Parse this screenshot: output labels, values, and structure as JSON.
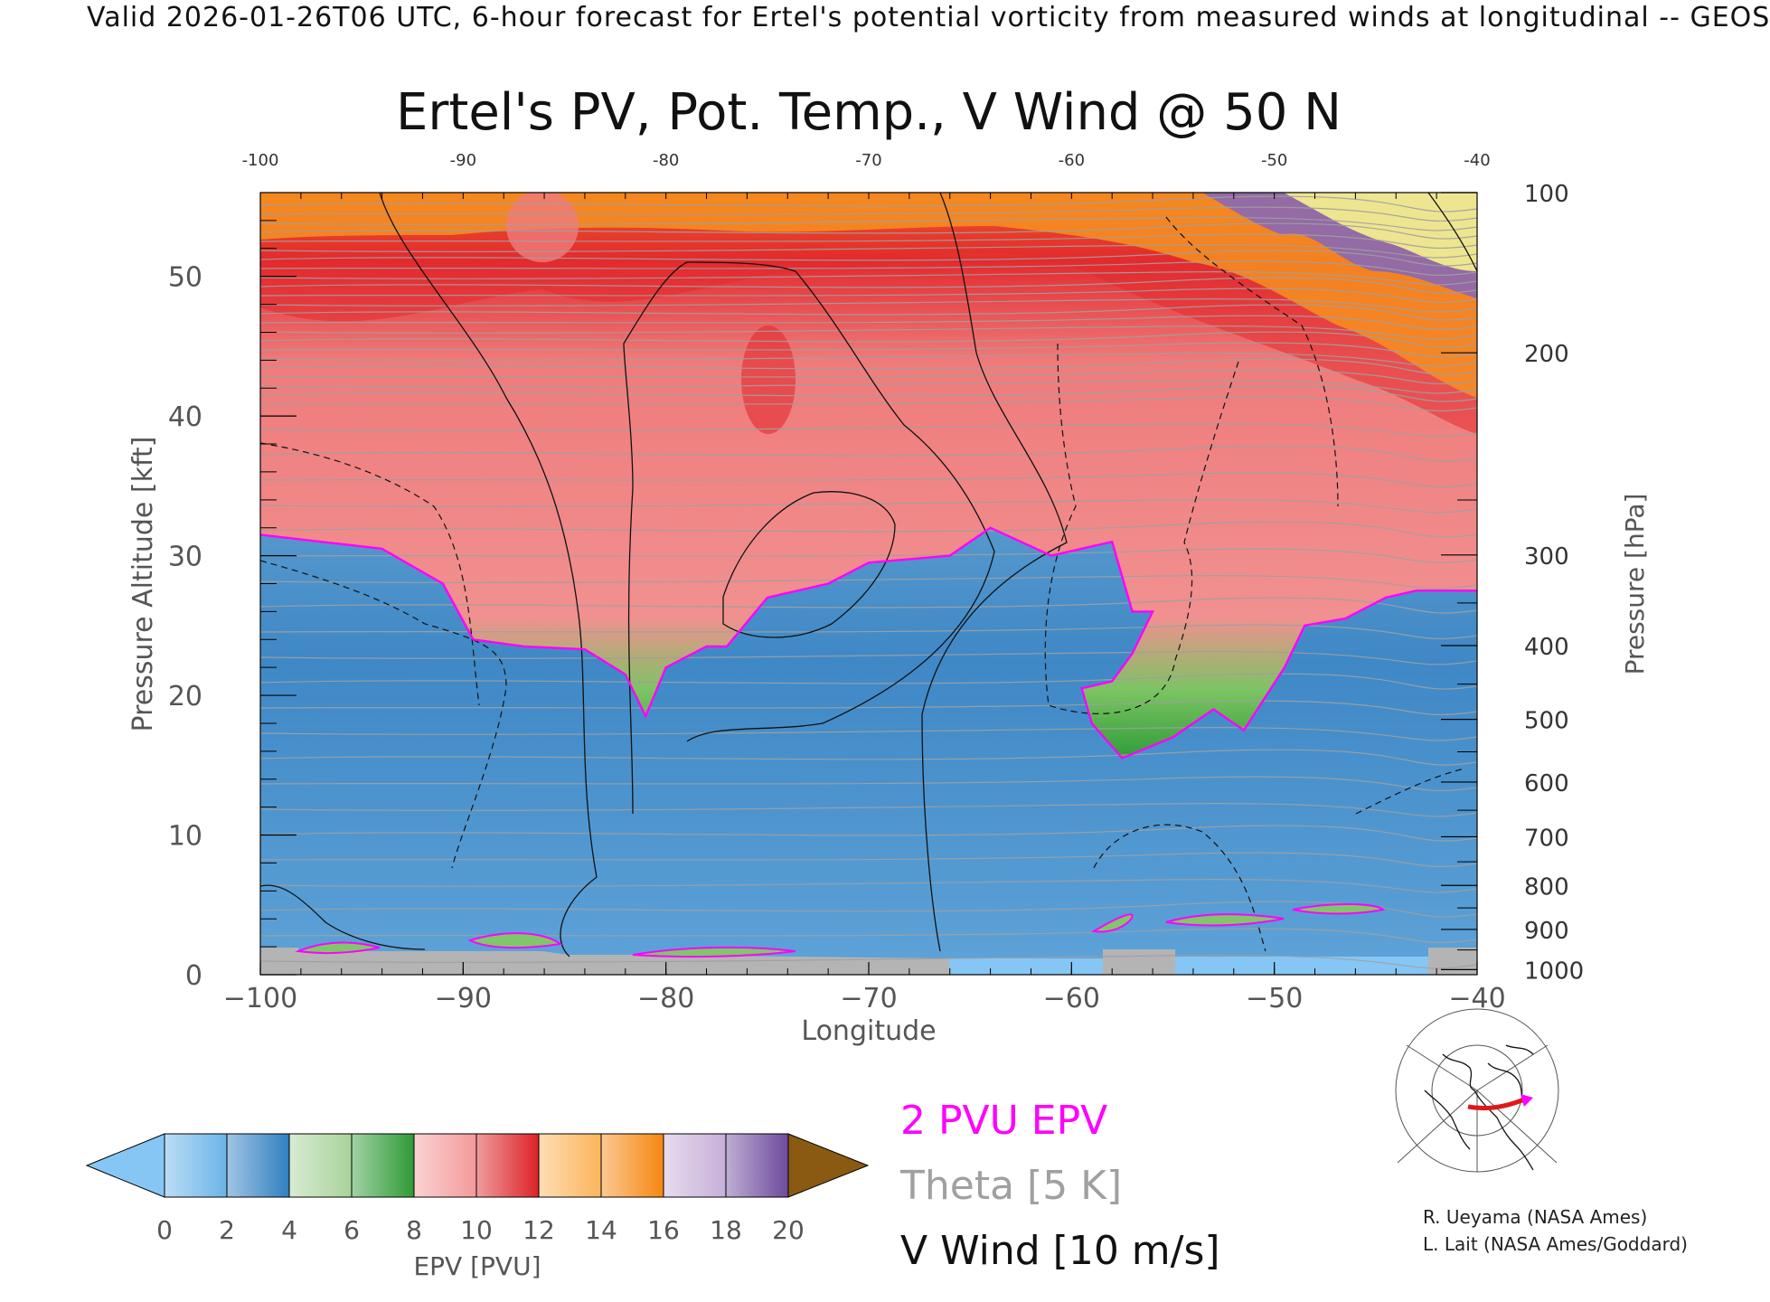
{
  "header": {
    "title": "Valid 2026-01-26T06 UTC, 6-hour forecast for Ertel's potential vorticity from measured winds at longitudinal -- GEOS"
  },
  "chart_data": {
    "type": "heatmap",
    "title": "Ertel's PV, Pot. Temp., V Wind @ 50 N",
    "xlabel": "Longitude",
    "ylabel": "Pressure Altitude [kft]",
    "y2label": "Pressure [hPa]",
    "xlim": [
      -100,
      -40
    ],
    "ylim": [
      0,
      56
    ],
    "x_ticks": [
      -100,
      -90,
      -80,
      -70,
      -60,
      -50,
      -40
    ],
    "x_tick_labels": [
      "−100",
      "−90",
      "−80",
      "−70",
      "−60",
      "−50",
      "−40"
    ],
    "x_top_tick_labels": [
      "-100",
      "-90",
      "-80",
      "-70",
      "-60",
      "-50",
      "-40"
    ],
    "y_ticks": [
      0,
      10,
      20,
      30,
      40,
      50
    ],
    "y_tick_labels": [
      "0",
      "10",
      "20",
      "30",
      "40",
      "50"
    ],
    "pressure_ticks": [
      {
        "hpa": 1000,
        "label": "1000"
      },
      {
        "hpa": 900,
        "label": "900"
      },
      {
        "hpa": 800,
        "label": "800"
      },
      {
        "hpa": 700,
        "label": "700"
      },
      {
        "hpa": 600,
        "label": "600"
      },
      {
        "hpa": 500,
        "label": "500"
      },
      {
        "hpa": 400,
        "label": "400"
      },
      {
        "hpa": 300,
        "label": "300"
      },
      {
        "hpa": 200,
        "label": "200"
      },
      {
        "hpa": 100,
        "label": "100"
      }
    ],
    "tropopause_2pvu_kft": [
      {
        "lon": -100,
        "kft": 31.5
      },
      {
        "lon": -97,
        "kft": 31
      },
      {
        "lon": -94,
        "kft": 30.5
      },
      {
        "lon": -91,
        "kft": 28
      },
      {
        "lon": -89.5,
        "kft": 24
      },
      {
        "lon": -87,
        "kft": 23.5
      },
      {
        "lon": -84,
        "kft": 23.3
      },
      {
        "lon": -82,
        "kft": 21.5
      },
      {
        "lon": -81,
        "kft": 18.5
      },
      {
        "lon": -80,
        "kft": 22
      },
      {
        "lon": -78,
        "kft": 23.5
      },
      {
        "lon": -77,
        "kft": 23.5
      },
      {
        "lon": -75,
        "kft": 27
      },
      {
        "lon": -72,
        "kft": 28
      },
      {
        "lon": -70,
        "kft": 29.5
      },
      {
        "lon": -66,
        "kft": 30
      },
      {
        "lon": -64,
        "kft": 32
      },
      {
        "lon": -61,
        "kft": 30
      },
      {
        "lon": -58,
        "kft": 31
      },
      {
        "lon": -57,
        "kft": 26
      },
      {
        "lon": -56,
        "kft": 26
      },
      {
        "lon": -57,
        "kft": 23
      },
      {
        "lon": -58,
        "kft": 21
      },
      {
        "lon": -59.5,
        "kft": 20.5
      },
      {
        "lon": -59,
        "kft": 18
      },
      {
        "lon": -57.5,
        "kft": 15.5
      },
      {
        "lon": -55,
        "kft": 17
      },
      {
        "lon": -53,
        "kft": 19
      },
      {
        "lon": -51.5,
        "kft": 17.5
      },
      {
        "lon": -49.5,
        "kft": 22
      },
      {
        "lon": -48.5,
        "kft": 25
      },
      {
        "lon": -46.5,
        "kft": 25.5
      },
      {
        "lon": -44.5,
        "kft": 27
      },
      {
        "lon": -43,
        "kft": 27.5
      },
      {
        "lon": -40,
        "kft": 27.5
      }
    ],
    "colorbar": {
      "label": "EPV [PVU]",
      "ticks": [
        "0",
        "2",
        "4",
        "6",
        "8",
        "10",
        "12",
        "14",
        "16",
        "18",
        "20"
      ],
      "colors": [
        "#6ab4e8",
        "#2f7fc1",
        "#a8d39a",
        "#2e9b35",
        "#f49a9a",
        "#dc2226",
        "#fcb45a",
        "#f6870f",
        "#c7b0d8",
        "#6e4a9e",
        "#f2ec8e"
      ],
      "under_color": "#86c6f4",
      "over_color": "#8a5a12"
    },
    "legend": {
      "pv_label": "2 PVU EPV",
      "theta_label": "Theta [5 K]",
      "wind_label": "V Wind [10 m/s]",
      "pv_color": "#ff00ff",
      "theta_color": "#a0a0a0",
      "wind_color": "#000000"
    }
  },
  "credits": {
    "line1": "R. Ueyama (NASA Ames)",
    "line2": "L. Lait (NASA Ames/Goddard)"
  }
}
